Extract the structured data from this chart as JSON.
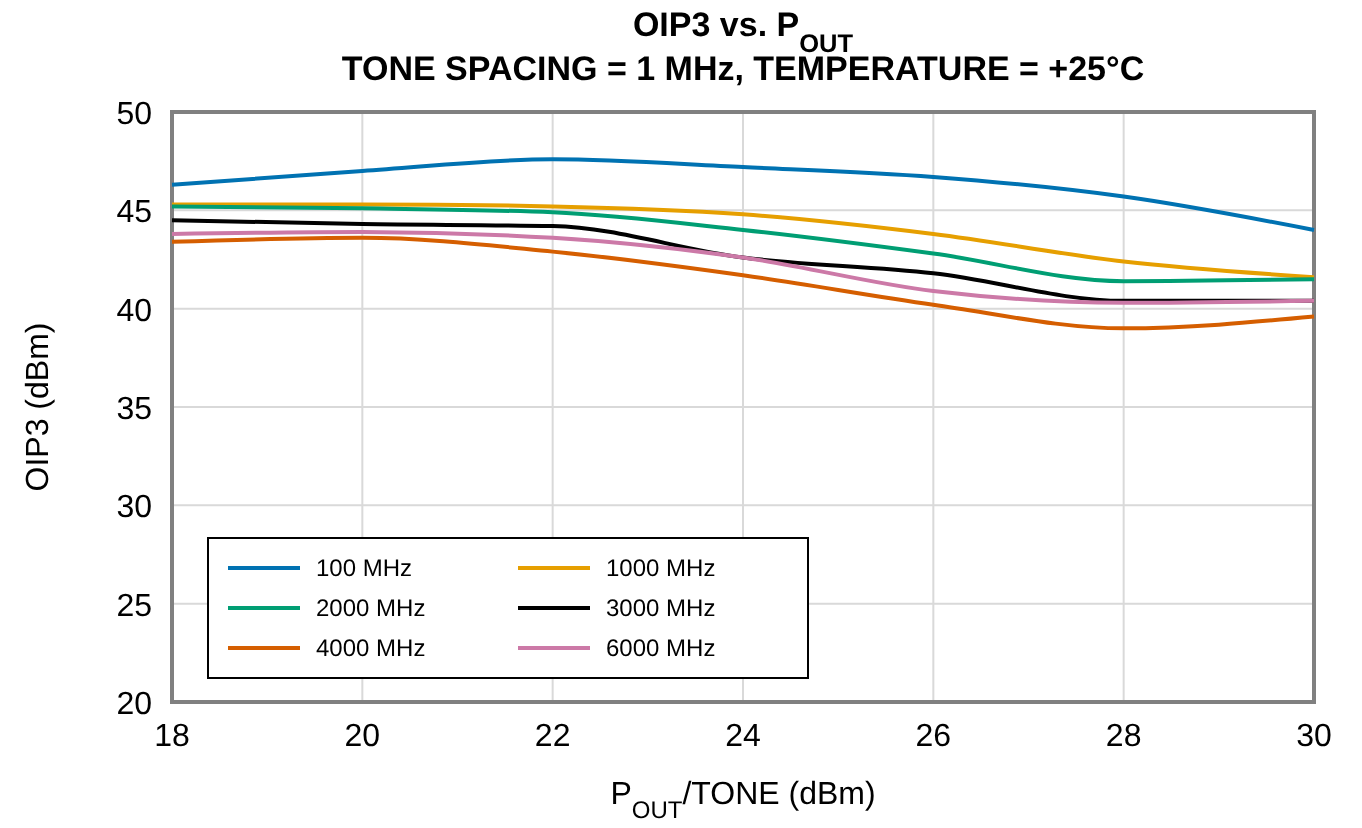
{
  "chart_data": {
    "type": "line",
    "title": "OIP3 vs. P$_{OUT}$",
    "subtitle": "TONE SPACING = 1 MHz, TEMPERATURE = +25°C",
    "xlabel": "P$_{OUT}$/TONE (dBm)",
    "ylabel": "OIP3 (dBm)",
    "x": [
      18,
      20,
      22,
      24,
      26,
      28,
      30
    ],
    "series": [
      {
        "name": "100 MHz",
        "color": "#0072b2",
        "values": [
          46.3,
          47.0,
          47.6,
          47.2,
          46.7,
          45.7,
          44.0
        ]
      },
      {
        "name": "1000 MHz",
        "color": "#e69f00",
        "values": [
          45.3,
          45.3,
          45.2,
          44.8,
          43.8,
          42.4,
          41.6
        ]
      },
      {
        "name": "2000 MHz",
        "color": "#009e73",
        "values": [
          45.2,
          45.1,
          44.9,
          44.0,
          42.8,
          41.4,
          41.5
        ]
      },
      {
        "name": "3000 MHz",
        "color": "#000000",
        "values": [
          44.5,
          44.3,
          44.2,
          42.6,
          41.8,
          40.4,
          40.4
        ]
      },
      {
        "name": "4000 MHz",
        "color": "#d55e00",
        "values": [
          43.4,
          43.6,
          42.9,
          41.7,
          40.2,
          39.0,
          39.6
        ]
      },
      {
        "name": "6000 MHz",
        "color": "#cc79a7",
        "values": [
          43.8,
          43.9,
          43.6,
          42.6,
          40.9,
          40.3,
          40.4
        ]
      }
    ],
    "xlim": [
      18,
      30
    ],
    "xticks": [
      18,
      20,
      22,
      24,
      26,
      28,
      30
    ],
    "ylim": [
      20,
      50
    ],
    "yticks": [
      20,
      25,
      30,
      35,
      40,
      45,
      50
    ],
    "grid": true,
    "legend": "bottom left",
    "line_style": "solid",
    "marker": "none"
  }
}
